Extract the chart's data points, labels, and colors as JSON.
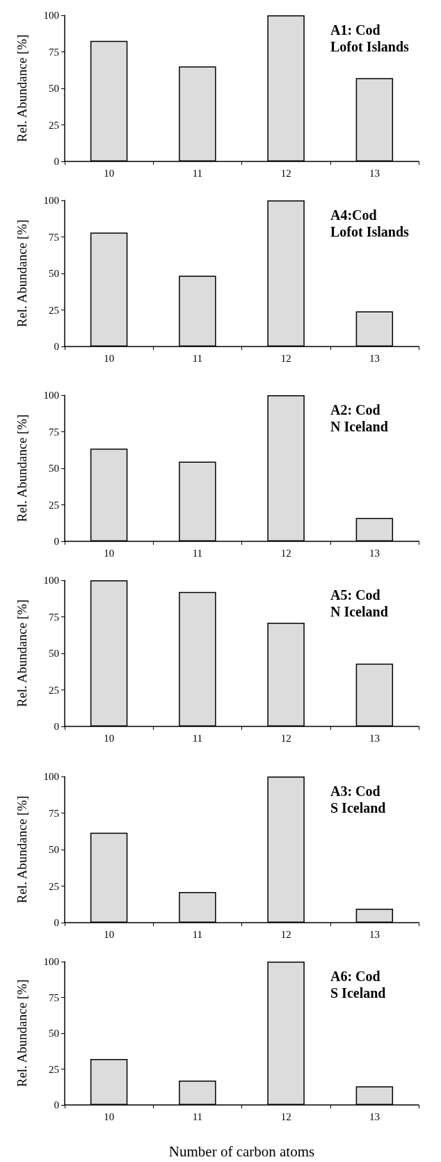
{
  "chart_data": [
    {
      "type": "bar",
      "title": "A1: Cod",
      "subtitle": "Lofot Islands",
      "ylabel": "Rel. Abundance [%]",
      "categories": [
        "10",
        "11",
        "12",
        "13"
      ],
      "values": [
        82.5,
        65,
        100,
        57
      ],
      "color": "#dcdcdc",
      "ylim": [
        0,
        100
      ],
      "yticks": [
        0,
        25,
        50,
        75,
        100
      ],
      "grid": false
    },
    {
      "type": "bar",
      "title": "A4:Cod",
      "subtitle": "Lofot Islands",
      "ylabel": "Rel. Abundance [%]",
      "categories": [
        "10",
        "11",
        "12",
        "13"
      ],
      "values": [
        78,
        48.5,
        100,
        24
      ],
      "color": "#dcdcdc",
      "ylim": [
        0,
        100
      ],
      "yticks": [
        0,
        25,
        50,
        75,
        100
      ],
      "grid": false
    },
    {
      "type": "bar",
      "title": "A2: Cod",
      "subtitle": "N Iceland",
      "ylabel": "Rel. Abundance [%]",
      "categories": [
        "10",
        "11",
        "12",
        "13"
      ],
      "values": [
        63.5,
        54.5,
        100,
        16
      ],
      "color": "#dcdcdc",
      "ylim": [
        0,
        100
      ],
      "yticks": [
        0,
        25,
        50,
        75,
        100
      ],
      "grid": false
    },
    {
      "type": "bar",
      "title": "A5: Cod",
      "subtitle": "N Iceland",
      "ylabel": "Rel. Abundance [%]",
      "categories": [
        "10",
        "11",
        "12",
        "13"
      ],
      "values": [
        100,
        92,
        71,
        43
      ],
      "color": "#dcdcdc",
      "ylim": [
        0,
        100
      ],
      "yticks": [
        0,
        25,
        50,
        75,
        100
      ],
      "grid": false
    },
    {
      "type": "bar",
      "title": "A3: Cod",
      "subtitle": "S Iceland",
      "ylabel": "Rel. Abundance [%]",
      "categories": [
        "10",
        "11",
        "12",
        "13"
      ],
      "values": [
        61.5,
        21,
        100,
        9.5
      ],
      "color": "#dcdcdc",
      "ylim": [
        0,
        100
      ],
      "yticks": [
        0,
        25,
        50,
        75,
        100
      ],
      "grid": false
    },
    {
      "type": "bar",
      "title": "A6: Cod",
      "subtitle": "S Iceland",
      "ylabel": "Rel. Abundance [%]",
      "xlabel": "Number of carbon atoms",
      "categories": [
        "10",
        "11",
        "12",
        "13"
      ],
      "values": [
        32,
        17,
        100,
        13
      ],
      "color": "#dcdcdc",
      "ylim": [
        0,
        100
      ],
      "yticks": [
        0,
        25,
        50,
        75,
        100
      ],
      "grid": false
    }
  ]
}
